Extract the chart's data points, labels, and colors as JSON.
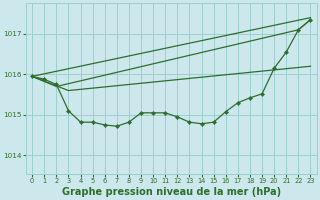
{
  "bg_color": "#cce8ec",
  "grid_color": "#9ecece",
  "line_color": "#2d6e2d",
  "title": "Graphe pression niveau de la mer (hPa)",
  "title_fontsize": 7.0,
  "xlim": [
    -0.5,
    23.5
  ],
  "ylim": [
    1013.55,
    1017.75
  ],
  "yticks": [
    1014,
    1015,
    1016,
    1017
  ],
  "xticks": [
    0,
    1,
    2,
    3,
    4,
    5,
    6,
    7,
    8,
    9,
    10,
    11,
    12,
    13,
    14,
    15,
    16,
    17,
    18,
    19,
    20,
    21,
    22,
    23
  ],
  "line1_x": [
    0,
    23
  ],
  "line1_y": [
    1015.95,
    1017.4
  ],
  "line2_x": [
    0,
    2,
    22,
    23
  ],
  "line2_y": [
    1015.95,
    1015.7,
    1017.1,
    1017.35
  ],
  "line3_x": [
    0,
    3,
    23
  ],
  "line3_y": [
    1015.95,
    1015.6,
    1016.2
  ],
  "line4_x": [
    0,
    1,
    2,
    3,
    4,
    5,
    6,
    7,
    8,
    9,
    10,
    11,
    12,
    13,
    14,
    15,
    16,
    17,
    18,
    19,
    20,
    21,
    22,
    23
  ],
  "line4_y": [
    1015.95,
    1015.88,
    1015.75,
    1015.1,
    1014.82,
    1014.82,
    1014.75,
    1014.72,
    1014.82,
    1015.05,
    1015.05,
    1015.05,
    1014.95,
    1014.82,
    1014.78,
    1014.82,
    1015.08,
    1015.3,
    1015.42,
    1015.52,
    1016.15,
    1016.55,
    1017.1,
    1017.35
  ],
  "marker": "D",
  "markersize": 2.2,
  "linewidth": 0.9,
  "tick_fontsize": 5.2,
  "xtick_fontsize": 4.8
}
